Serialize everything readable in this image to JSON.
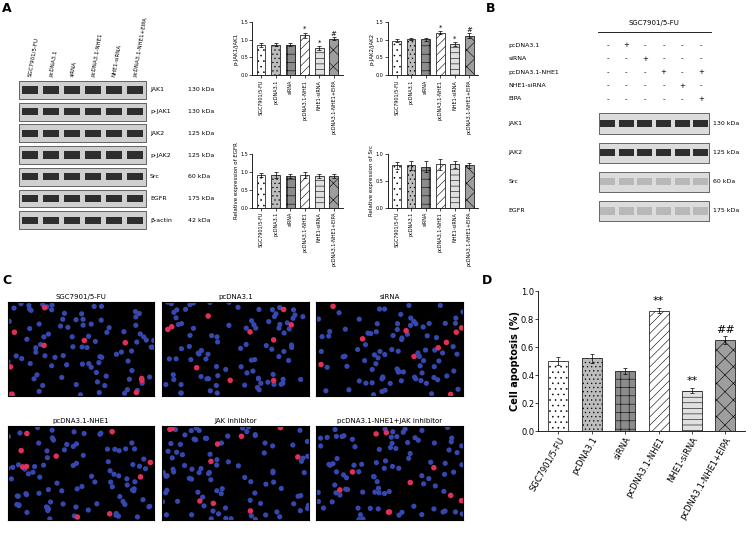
{
  "panel_labels": [
    "A",
    "B",
    "C",
    "D"
  ],
  "blot_A": {
    "lanes": [
      "SGC7901/5-FU",
      "pcDNA3.1",
      "siRNA",
      "pcDNA3.1-NHE1",
      "NHE1-siRNA",
      "pcDNA3.1-NHE1+EIPA"
    ],
    "rows": [
      {
        "protein": "JAK1",
        "size": "130 kDa"
      },
      {
        "protein": "p-JAK1",
        "size": "130 kDa"
      },
      {
        "protein": "JAK2",
        "size": "125 kDa"
      },
      {
        "protein": "p-JAK2",
        "size": "125 kDa"
      },
      {
        "protein": "Src",
        "size": "60 kDa"
      },
      {
        "protein": "EGFR",
        "size": "175 kDa"
      },
      {
        "protein": "β-actin",
        "size": "42 kDa"
      }
    ]
  },
  "blot_B": {
    "header": "SGC7901/5-FU",
    "treatments": [
      {
        "name": "pcDNA3.1",
        "signs": [
          "-",
          "+",
          "-",
          "-",
          "-",
          "-"
        ]
      },
      {
        "name": "siRNA",
        "signs": [
          "-",
          "-",
          "+",
          "-",
          "-",
          "-"
        ]
      },
      {
        "name": "pcDNA3.1-NHE1",
        "signs": [
          "-",
          "-",
          "-",
          "+",
          "-",
          "+"
        ]
      },
      {
        "name": "NHE1-siRNA",
        "signs": [
          "-",
          "-",
          "-",
          "-",
          "+",
          "-"
        ]
      },
      {
        "name": "EIPA",
        "signs": [
          "-",
          "-",
          "-",
          "-",
          "-",
          "+"
        ]
      }
    ],
    "rows": [
      {
        "protein": "JAK1",
        "size": "130 kDa"
      },
      {
        "protein": "JAK2",
        "size": "125 kDa"
      },
      {
        "protein": "Src",
        "size": "60 kDa"
      },
      {
        "protein": "EGFR",
        "size": "175 kDa"
      }
    ]
  },
  "images_C": {
    "titles": [
      "SGC7901/5-FU",
      "pcDNA3.1",
      "siRNA",
      "pcDNA3.1-NHE1",
      "JAK inhibitor",
      "pcDNA3.1-NHE1+JAK inhibitor"
    ]
  },
  "chart_data": [
    {
      "type": "bar",
      "y_label": "p-JAK1/JAK1",
      "categories": [
        "SGC7901/5-FU",
        "pcDNA3.1",
        "siRNA",
        "pcDNA3.1-NHE1",
        "NHE1-siRNA",
        "pcDNA3.1-NHE1+EIPA"
      ],
      "values": [
        0.85,
        0.86,
        0.86,
        1.12,
        0.76,
        1.02
      ],
      "errors": [
        0.06,
        0.03,
        0.03,
        0.07,
        0.05,
        0.04
      ],
      "colors": [
        "#ffffff",
        "#bdbdbd",
        "#8c8c8c",
        "#ffffff",
        "#e0e0e0",
        "#9e9e9e"
      ],
      "ylim": [
        0.0,
        1.5
      ],
      "yticks": [
        0.0,
        0.5,
        1.0,
        1.5
      ],
      "annotations": [
        {
          "category": "pcDNA3.1-NHE1",
          "text": "*"
        },
        {
          "category": "NHE1-siRNA",
          "text": "*"
        },
        {
          "category": "pcDNA3.1-NHE1+EIPA",
          "text": "#"
        }
      ]
    },
    {
      "type": "bar",
      "y_label": "p-JAK2/JAK2",
      "categories": [
        "SGC7901/5-FU",
        "pcDNA3.1",
        "siRNA",
        "pcDNA3.1-NHE1",
        "NHE1-siRNA",
        "pcDNA3.1-NHE1+EIPA"
      ],
      "values": [
        0.97,
        1.01,
        1.01,
        1.19,
        0.87,
        1.1
      ],
      "errors": [
        0.04,
        0.03,
        0.04,
        0.04,
        0.06,
        0.07
      ],
      "colors": [
        "#ffffff",
        "#bdbdbd",
        "#8c8c8c",
        "#ffffff",
        "#e0e0e0",
        "#9e9e9e"
      ],
      "ylim": [
        0.0,
        1.5
      ],
      "yticks": [
        0.0,
        0.5,
        1.0,
        1.5
      ],
      "annotations": [
        {
          "category": "pcDNA3.1-NHE1",
          "text": "*"
        },
        {
          "category": "NHE1-siRNA",
          "text": "*"
        },
        {
          "category": "pcDNA3.1-NHE1+EIPA",
          "text": "#"
        }
      ]
    },
    {
      "type": "bar",
      "y_label": "Relative expression of EGFR",
      "categories": [
        "SGC7901/5-FU",
        "pcDNA3.1",
        "siRNA",
        "pcDNA3.1-NHE1",
        "NHE1-siRNA",
        "pcDNA3.1-NHE1+EIPA"
      ],
      "values": [
        0.9,
        0.9,
        0.88,
        0.91,
        0.88,
        0.88
      ],
      "errors": [
        0.06,
        0.08,
        0.05,
        0.08,
        0.06,
        0.05
      ],
      "colors": [
        "#ffffff",
        "#bdbdbd",
        "#8c8c8c",
        "#ffffff",
        "#e0e0e0",
        "#9e9e9e"
      ],
      "ylim": [
        0.0,
        1.5
      ],
      "yticks": [
        0.0,
        0.5,
        1.0,
        1.5
      ]
    },
    {
      "type": "bar",
      "y_label": "Relative expression of Src",
      "categories": [
        "SGC7901/5-FU",
        "pcDNA3.1",
        "siRNA",
        "pcDNA3.1-NHE1",
        "NHE1-siRNA",
        "pcDNA3.1-NHE1+EIPA"
      ],
      "values": [
        0.78,
        0.78,
        0.76,
        0.8,
        0.8,
        0.78
      ],
      "errors": [
        0.07,
        0.09,
        0.1,
        0.1,
        0.06,
        0.04
      ],
      "colors": [
        "#ffffff",
        "#bdbdbd",
        "#8c8c8c",
        "#ffffff",
        "#e0e0e0",
        "#9e9e9e"
      ],
      "ylim": [
        0.0,
        1.0
      ],
      "yticks": [
        0.0,
        0.5,
        1.0
      ]
    },
    {
      "type": "bar",
      "y_label": "Cell apoptosis (%)",
      "categories": [
        "SGC7901/5-FU",
        "pcDNA3.1",
        "siRNA",
        "pcDNA3.1-NHE1",
        "NHE1-siRNA",
        "pcDNA3.1-NHE1+EIPA"
      ],
      "values": [
        0.5,
        0.52,
        0.43,
        0.86,
        0.29,
        0.65
      ],
      "errors": [
        0.03,
        0.03,
        0.02,
        0.02,
        0.02,
        0.03
      ],
      "colors": [
        "#ffffff",
        "#bdbdbd",
        "#8c8c8c",
        "#ffffff",
        "#e0e0e0",
        "#9e9e9e"
      ],
      "ylim": [
        0.0,
        1.0
      ],
      "yticks": [
        0.0,
        0.2,
        0.4,
        0.6,
        0.8,
        1.0
      ],
      "annotations": [
        {
          "category": "pcDNA3.1-NHE1",
          "text": "**"
        },
        {
          "category": "NHE1-siRNA",
          "text": "**"
        },
        {
          "category": "pcDNA3.1-NHE1+EIPA",
          "text": "##"
        }
      ]
    }
  ]
}
